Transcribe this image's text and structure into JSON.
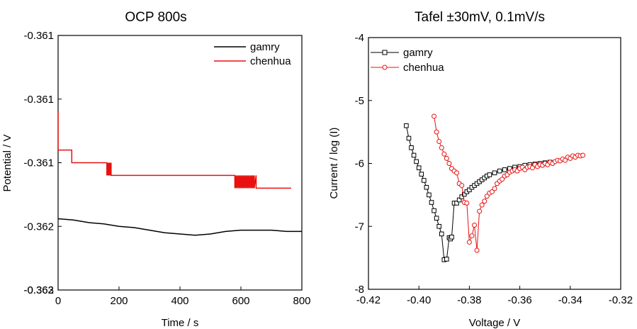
{
  "chart_data": [
    {
      "type": "line",
      "title": "OCP 800s",
      "xlabel": "Time / s",
      "ylabel": "Potential / V",
      "xlim": [
        0,
        800
      ],
      "ylim": [
        -0.3625,
        -0.3605
      ],
      "xticks": [
        0,
        200,
        400,
        600,
        800
      ],
      "xtick_labels": [
        "0",
        "200",
        "400",
        "600",
        "800"
      ],
      "yticks": [
        -0.3605,
        -0.361,
        -0.3615,
        -0.362,
        -0.3625
      ],
      "ytick_labels": [
        "-0.361",
        "-0.361",
        "-0.361",
        "-0.362",
        "-0.362"
      ],
      "extra_tick_labels": [
        "-0.363"
      ],
      "legend_position": "top-right",
      "series": [
        {
          "name": "gamry",
          "color": "#000000",
          "x": [
            0,
            50,
            100,
            150,
            200,
            250,
            300,
            350,
            400,
            450,
            500,
            550,
            600,
            650,
            700,
            750,
            800
          ],
          "y": [
            -0.36194,
            -0.36195,
            -0.36197,
            -0.36198,
            -0.362,
            -0.36201,
            -0.36203,
            -0.36205,
            -0.36206,
            -0.36207,
            -0.36206,
            -0.36204,
            -0.36203,
            -0.36203,
            -0.36203,
            -0.36204,
            -0.36204
          ]
        },
        {
          "name": "chenhua",
          "color": "#e8110f",
          "x": [
            0,
            0,
            5,
            5,
            45,
            45,
            160,
            160,
            162,
            162,
            164,
            164,
            166,
            166,
            168,
            168,
            170,
            170,
            172,
            172,
            174,
            174,
            580,
            580,
            584,
            584,
            588,
            588,
            592,
            592,
            596,
            596,
            600,
            600,
            604,
            604,
            608,
            608,
            612,
            612,
            616,
            616,
            620,
            620,
            624,
            624,
            628,
            628,
            632,
            632,
            636,
            636,
            640,
            640,
            644,
            644,
            650,
            650,
            765
          ],
          "y": [
            -0.3611,
            -0.3614,
            -0.3614,
            -0.3614,
            -0.3614,
            -0.3615,
            -0.3615,
            -0.3616,
            -0.3615,
            -0.3616,
            -0.3615,
            -0.3616,
            -0.3615,
            -0.3616,
            -0.3615,
            -0.3616,
            -0.3615,
            -0.3616,
            -0.3615,
            -0.3616,
            -0.3615,
            -0.3616,
            -0.3616,
            -0.3617,
            -0.3616,
            -0.3617,
            -0.3616,
            -0.3617,
            -0.3616,
            -0.3617,
            -0.3616,
            -0.3617,
            -0.3616,
            -0.3617,
            -0.3616,
            -0.3617,
            -0.3616,
            -0.3617,
            -0.3616,
            -0.3617,
            -0.3616,
            -0.3617,
            -0.3616,
            -0.3617,
            -0.3616,
            -0.3617,
            -0.3616,
            -0.3617,
            -0.3616,
            -0.3617,
            -0.3616,
            -0.3617,
            -0.3616,
            -0.3617,
            -0.3616,
            -0.3617,
            -0.3616,
            -0.3617,
            -0.3617
          ]
        }
      ]
    },
    {
      "type": "line",
      "title": "Tafel ±30mV, 0.1mV/s",
      "xlabel": "Voltage / V",
      "ylabel": "Current / log (I)",
      "xlim": [
        -0.42,
        -0.32
      ],
      "ylim": [
        -8,
        -4
      ],
      "xticks": [
        -0.42,
        -0.4,
        -0.38,
        -0.36,
        -0.34,
        -0.32
      ],
      "xtick_labels": [
        "-0.42",
        "-0.40",
        "-0.38",
        "-0.36",
        "-0.34",
        "-0.32"
      ],
      "yticks": [
        -4,
        -5,
        -6,
        -7,
        -8
      ],
      "ytick_labels": [
        "-4",
        "-5",
        "-6",
        "-7",
        "-8"
      ],
      "legend_position": "top-left",
      "series": [
        {
          "name": "gamry",
          "color": "#000000",
          "marker": "square",
          "x": [
            -0.405,
            -0.404,
            -0.403,
            -0.402,
            -0.401,
            -0.4,
            -0.399,
            -0.398,
            -0.397,
            -0.396,
            -0.395,
            -0.394,
            -0.393,
            -0.392,
            -0.391,
            -0.39,
            -0.389,
            -0.388,
            -0.3875,
            -0.387,
            -0.386,
            -0.385,
            -0.384,
            -0.383,
            -0.382,
            -0.381,
            -0.38,
            -0.379,
            -0.378,
            -0.377,
            -0.376,
            -0.375,
            -0.374,
            -0.373,
            -0.372,
            -0.37,
            -0.368,
            -0.366,
            -0.364,
            -0.362,
            -0.36,
            -0.358,
            -0.356,
            -0.354,
            -0.352,
            -0.35,
            -0.348
          ],
          "y": [
            -5.4,
            -5.6,
            -5.75,
            -5.87,
            -5.97,
            -6.07,
            -6.17,
            -6.27,
            -6.38,
            -6.5,
            -6.62,
            -6.75,
            -6.87,
            -7.0,
            -7.12,
            -7.53,
            -7.52,
            -7.18,
            -7.2,
            -7.17,
            -6.63,
            -6.63,
            -6.58,
            -6.53,
            -6.49,
            -6.45,
            -6.42,
            -6.38,
            -6.35,
            -6.32,
            -6.29,
            -6.26,
            -6.23,
            -6.2,
            -6.18,
            -6.15,
            -6.12,
            -6.1,
            -6.08,
            -6.06,
            -6.05,
            -6.03,
            -6.02,
            -6.01,
            -6.0,
            -5.99,
            -5.98
          ]
        },
        {
          "name": "chenhua",
          "color": "#e8110f",
          "marker": "circle",
          "x": [
            -0.394,
            -0.393,
            -0.392,
            -0.391,
            -0.39,
            -0.389,
            -0.388,
            -0.387,
            -0.386,
            -0.385,
            -0.384,
            -0.383,
            -0.382,
            -0.381,
            -0.38,
            -0.379,
            -0.378,
            -0.377,
            -0.376,
            -0.375,
            -0.374,
            -0.373,
            -0.372,
            -0.371,
            -0.37,
            -0.369,
            -0.368,
            -0.367,
            -0.366,
            -0.365,
            -0.364,
            -0.363,
            -0.362,
            -0.361,
            -0.36,
            -0.359,
            -0.358,
            -0.357,
            -0.356,
            -0.355,
            -0.354,
            -0.353,
            -0.352,
            -0.351,
            -0.35,
            -0.349,
            -0.348,
            -0.347,
            -0.346,
            -0.345,
            -0.344,
            -0.343,
            -0.342,
            -0.341,
            -0.34,
            -0.339,
            -0.338,
            -0.337,
            -0.336,
            -0.335
          ],
          "y": [
            -5.25,
            -5.5,
            -5.65,
            -5.75,
            -5.85,
            -5.92,
            -6.0,
            -6.08,
            -6.12,
            -6.15,
            -6.32,
            -6.35,
            -6.62,
            -6.63,
            -7.25,
            -7.15,
            -6.98,
            -7.38,
            -6.76,
            -6.66,
            -6.6,
            -6.52,
            -6.47,
            -6.45,
            -6.4,
            -6.32,
            -6.28,
            -6.25,
            -6.2,
            -6.18,
            -6.14,
            -6.12,
            -6.1,
            -6.12,
            -6.08,
            -6.06,
            -6.1,
            -6.06,
            -6.05,
            -6.07,
            -6.02,
            -6.05,
            -6.02,
            -6.03,
            -6.0,
            -6.02,
            -5.98,
            -6.0,
            -5.97,
            -5.95,
            -5.96,
            -5.93,
            -5.95,
            -5.9,
            -5.92,
            -5.88,
            -5.9,
            -5.87,
            -5.88,
            -5.87
          ]
        }
      ]
    }
  ]
}
